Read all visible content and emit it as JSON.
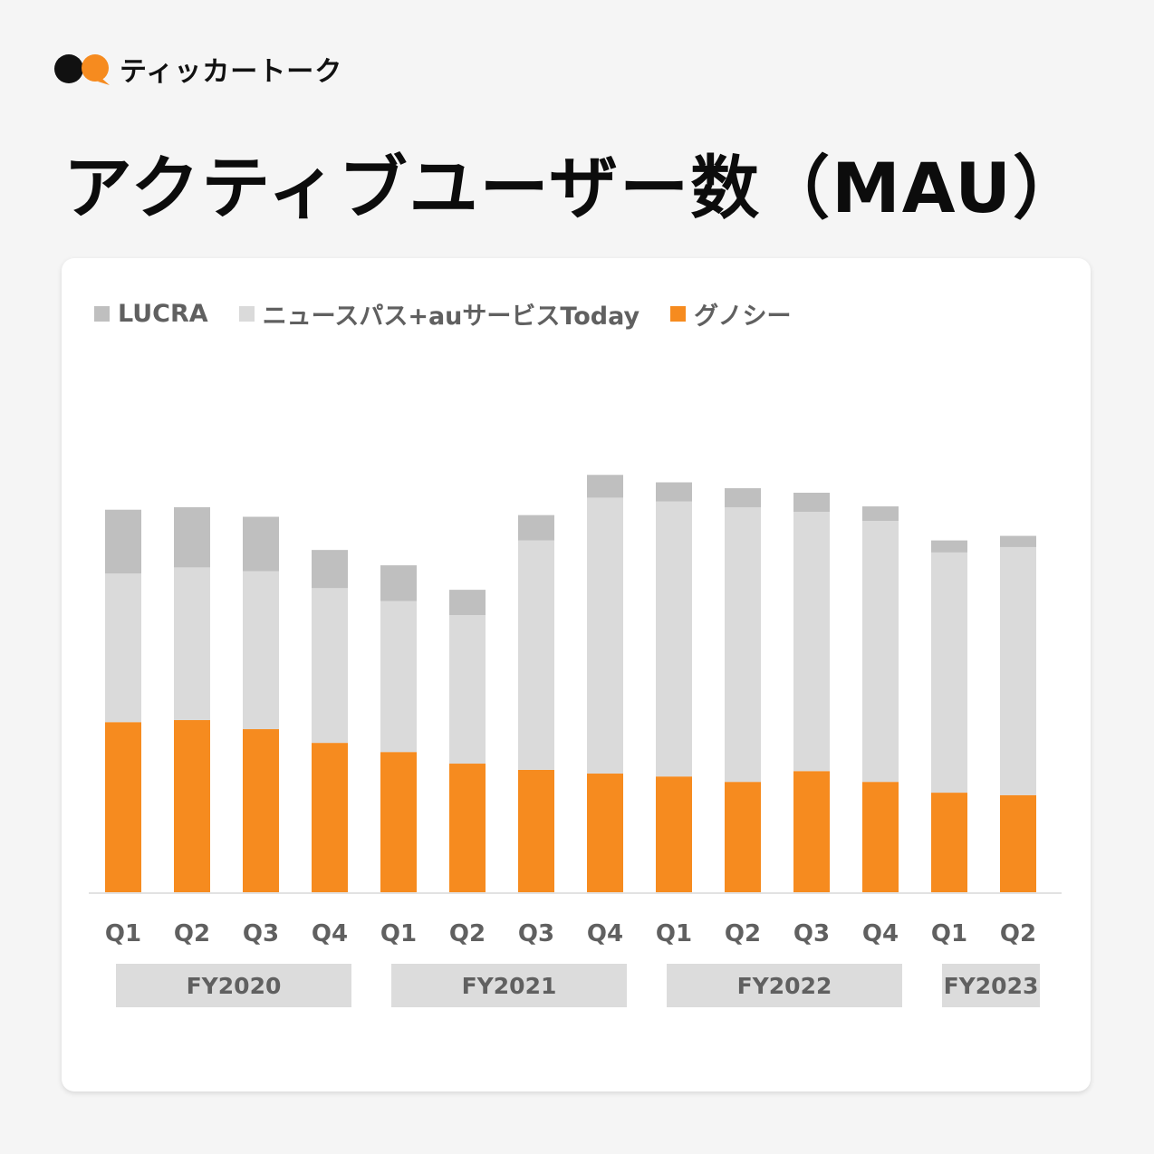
{
  "brand": {
    "name": "ティッカートーク",
    "icon": "speech-bubbles-logo-icon"
  },
  "title": "アクティブユーザー数（MAU）",
  "colors": {
    "lucra": "#bfbfbf",
    "newspass": "#dadada",
    "gunosy": "#f68b1f",
    "fy_band": "#dcdcdc",
    "text": "#606060"
  },
  "chart_data": {
    "type": "bar",
    "stacked": true,
    "legend_position": "top-left",
    "grid": false,
    "ylim": [
      0,
      100
    ],
    "categories": [
      "Q1",
      "Q2",
      "Q3",
      "Q4",
      "Q1",
      "Q2",
      "Q3",
      "Q4",
      "Q1",
      "Q2",
      "Q3",
      "Q4",
      "Q1",
      "Q2"
    ],
    "groups": [
      {
        "label": "FY2020",
        "span": 4
      },
      {
        "label": "FY2021",
        "span": 4
      },
      {
        "label": "FY2022",
        "span": 4
      },
      {
        "label": "FY2023",
        "span": 2
      }
    ],
    "series": [
      {
        "name": "グノシー",
        "color": "#f68b1f",
        "values": [
          41.0,
          41.5,
          39.3,
          36.0,
          33.8,
          31.0,
          29.5,
          28.6,
          27.9,
          26.6,
          29.2,
          26.6,
          24.0,
          23.4
        ]
      },
      {
        "name": "ニュースパス+auサービスToday",
        "color": "#dadada",
        "values": [
          35.8,
          36.8,
          38.1,
          37.3,
          36.4,
          35.8,
          55.3,
          66.5,
          66.3,
          66.2,
          62.5,
          62.9,
          57.9,
          59.8
        ]
      },
      {
        "name": "LUCRA",
        "color": "#bfbfbf",
        "values": [
          15.4,
          14.5,
          13.1,
          9.2,
          8.6,
          6.1,
          6.1,
          5.5,
          4.6,
          4.6,
          4.6,
          3.5,
          2.9,
          2.7
        ]
      }
    ],
    "legend": [
      "LUCRA",
      "ニュースパス+auサービスToday",
      "グノシー"
    ]
  }
}
